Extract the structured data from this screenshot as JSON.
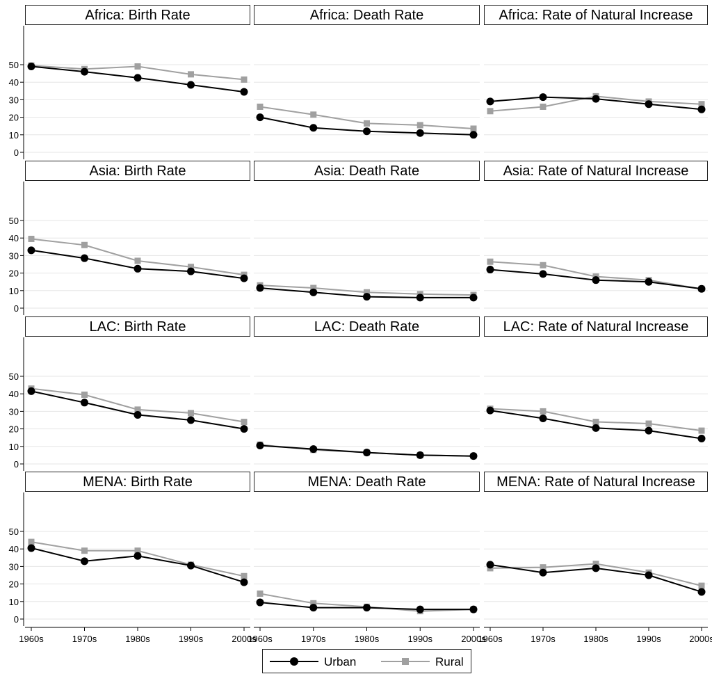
{
  "colors": {
    "urban": "#000000",
    "rural": "#a0a0a0",
    "grid": "#e6e6e6",
    "frame": "#222222"
  },
  "chart_data": {
    "type": "line",
    "layout": "small-multiples 4x3",
    "x": [
      "1960s",
      "1970s",
      "1980s",
      "1990s",
      "2000s"
    ],
    "y_ticks": [
      0,
      10,
      20,
      30,
      40,
      50
    ],
    "ylim": [
      0,
      55
    ],
    "grid": true,
    "legend": {
      "position": "bottom",
      "entries": [
        "Urban",
        "Rural"
      ]
    },
    "panels": [
      {
        "title": "Africa:  Birth Rate",
        "urban": [
          49,
          46,
          42.5,
          38.5,
          34.5
        ],
        "rural": [
          49.5,
          47.5,
          49,
          44.5,
          41.5
        ]
      },
      {
        "title": "Africa:  Death Rate",
        "urban": [
          20,
          14,
          12,
          11,
          10
        ],
        "rural": [
          26,
          21.5,
          16.5,
          15.5,
          13.5
        ]
      },
      {
        "title": "Africa: Rate of Natural Increase",
        "urban": [
          29,
          31.5,
          30.5,
          27.5,
          24.5
        ],
        "rural": [
          23.5,
          26,
          32,
          29,
          27.5
        ]
      },
      {
        "title": "Asia:  Birth Rate",
        "urban": [
          33,
          28.5,
          22.5,
          21,
          17
        ],
        "rural": [
          39.5,
          36,
          27,
          23.5,
          19
        ]
      },
      {
        "title": "Asia:  Death Rate",
        "urban": [
          11.5,
          9,
          6.5,
          6,
          6
        ],
        "rural": [
          13,
          11.5,
          9,
          8,
          7.5
        ]
      },
      {
        "title": "Asia:  Rate of Natural Increase",
        "urban": [
          22,
          19.5,
          16,
          15,
          11
        ],
        "rural": [
          26.5,
          24.5,
          18,
          16,
          11
        ]
      },
      {
        "title": "LAC:  Birth Rate",
        "urban": [
          41.5,
          35,
          28,
          25,
          20
        ],
        "rural": [
          43,
          39.5,
          31,
          29,
          24
        ]
      },
      {
        "title": "LAC:  Death Rate",
        "urban": [
          10.5,
          8.5,
          6.5,
          5,
          4.5
        ],
        "rural": [
          11,
          8,
          6.5,
          5,
          4.5
        ]
      },
      {
        "title": "LAC: Rate of Natural Increase",
        "urban": [
          30.5,
          26,
          20.5,
          19,
          14.5
        ],
        "rural": [
          31.5,
          30,
          24,
          23,
          19
        ]
      },
      {
        "title": "MENA:  Birth Rate",
        "urban": [
          40.5,
          33,
          36,
          30.5,
          21
        ],
        "rural": [
          44,
          39,
          39,
          31,
          24.5
        ]
      },
      {
        "title": "MENA:  Death Rate",
        "urban": [
          9.5,
          6.5,
          6.5,
          5.5,
          5.5
        ],
        "rural": [
          14.5,
          9,
          7,
          4.5,
          5.5
        ]
      },
      {
        "title": "MENA: Rate of Natural Increase",
        "urban": [
          31,
          26.5,
          29,
          25,
          15.5
        ],
        "rural": [
          29,
          29.5,
          31.5,
          26.5,
          19
        ]
      }
    ],
    "series": [
      {
        "key": "urban",
        "name": "Urban",
        "marker": "circle"
      },
      {
        "key": "rural",
        "name": "Rural",
        "marker": "square"
      }
    ]
  }
}
